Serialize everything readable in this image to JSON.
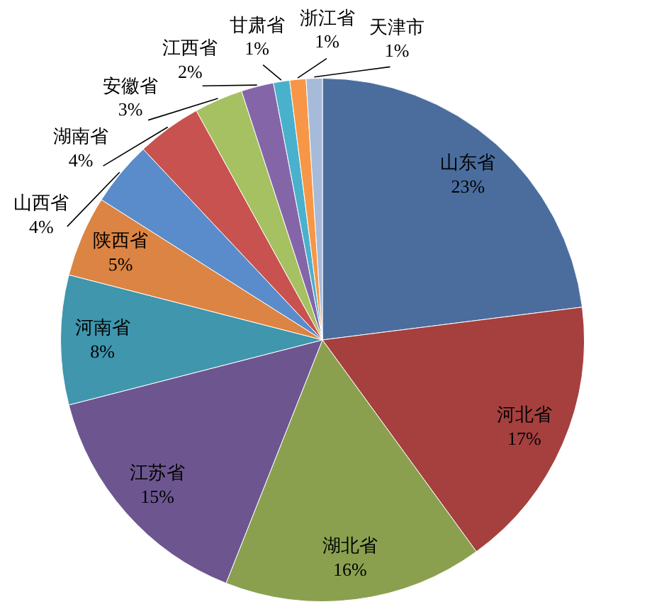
{
  "chart_data": {
    "type": "pie",
    "categories": [
      "山东省",
      "河北省",
      "湖北省",
      "江苏省",
      "河南省",
      "陕西省",
      "山西省",
      "湖南省",
      "安徽省",
      "江西省",
      "甘肃省",
      "浙江省",
      "天津市"
    ],
    "values": [
      23,
      17,
      16,
      15,
      8,
      5,
      4,
      4,
      3,
      2,
      1,
      1,
      1
    ],
    "value_labels": [
      "23%",
      "17%",
      "16%",
      "15%",
      "8%",
      "5%",
      "4%",
      "4%",
      "3%",
      "2%",
      "1%",
      "1%",
      "1%"
    ],
    "colors": [
      "#4a6d9e",
      "#a5403e",
      "#8aa04f",
      "#6d5690",
      "#3f96ad",
      "#dc8443",
      "#5a8ccb",
      "#c8524f",
      "#a5c161",
      "#8466a8",
      "#4ab1cc",
      "#f79646",
      "#a6bbd9"
    ]
  }
}
